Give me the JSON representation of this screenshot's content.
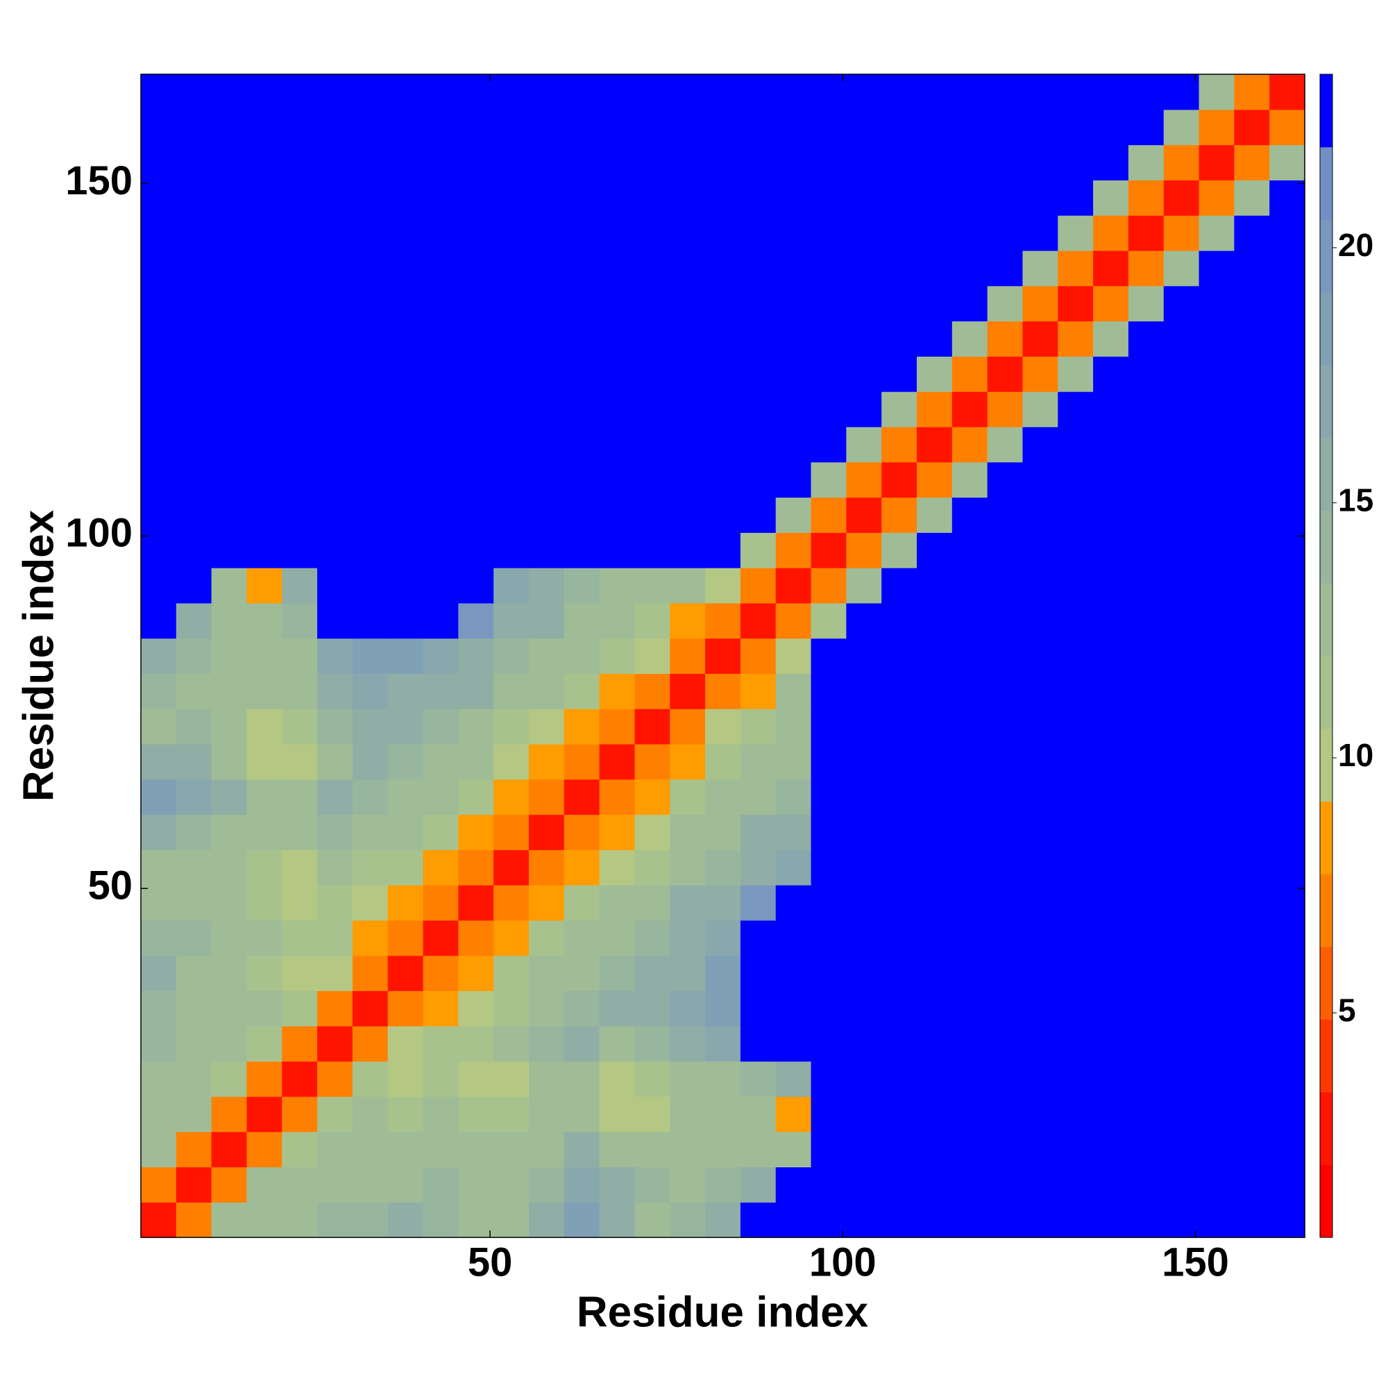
{
  "chart_data": {
    "type": "heatmap",
    "x_label": "Residue index",
    "y_label": "Residue index",
    "xlim": [
      0.5,
      165.5
    ],
    "ylim": [
      0.5,
      165.5
    ],
    "xticks": [
      50,
      100,
      150
    ],
    "yticks": [
      50,
      100,
      150
    ],
    "bins": [
      0.5,
      5.5,
      10.5,
      15.5,
      20.5,
      25.5,
      30.5,
      35.5,
      40.5,
      45.5,
      50.5,
      55.5,
      60.5,
      65.5,
      70.5,
      75.5,
      80.5,
      85.5,
      90.5,
      95.5,
      100.5,
      105.5,
      110.5,
      115.5,
      120.5,
      125.5,
      130.5,
      135.5,
      140.5,
      145.5,
      150.5,
      155.5,
      160.5,
      165.5
    ],
    "zlim": [
      0.6,
      23.4
    ],
    "zticks": [
      5,
      10,
      15,
      20
    ],
    "colorscale": [
      "#ff0000",
      "#ff1400",
      "#ff3800",
      "#ff5e00",
      "#ff8000",
      "#ff9c00",
      "#b4c884",
      "#a8c28e",
      "#a0bc96",
      "#98b69e",
      "#90aea6",
      "#88a8ae",
      "#80a0b6",
      "#7a98be",
      "#7290c4",
      "#0000ff"
    ],
    "values": [
      [
        3,
        7,
        12,
        13,
        13,
        14,
        14,
        15,
        14,
        13,
        13,
        15,
        18,
        16,
        13,
        14,
        15,
        23,
        23,
        23,
        23,
        23,
        23,
        23,
        23,
        23,
        23,
        23,
        23,
        23,
        23,
        23,
        23
      ],
      [
        7,
        3,
        7,
        12,
        12,
        13,
        13,
        13,
        14,
        13,
        12,
        14,
        17,
        15,
        14,
        13,
        14,
        16,
        23,
        23,
        23,
        23,
        23,
        23,
        23,
        23,
        23,
        23,
        23,
        23,
        23,
        23,
        23
      ],
      [
        12,
        7,
        3,
        7,
        11,
        12,
        12,
        12,
        13,
        12,
        12,
        13,
        15,
        13,
        12,
        12,
        13,
        13,
        12,
        23,
        23,
        23,
        23,
        23,
        23,
        23,
        23,
        23,
        23,
        23,
        23,
        23,
        23
      ],
      [
        13,
        12,
        7,
        3,
        7,
        11,
        12,
        11,
        12,
        11,
        11,
        12,
        13,
        10,
        10,
        12,
        12,
        12,
        9,
        23,
        23,
        23,
        23,
        23,
        23,
        23,
        23,
        23,
        23,
        23,
        23,
        23,
        23
      ],
      [
        13,
        12,
        11,
        7,
        3,
        7,
        11,
        10,
        11,
        10,
        10,
        12,
        13,
        10,
        11,
        12,
        12,
        14,
        15,
        23,
        23,
        23,
        23,
        23,
        23,
        23,
        23,
        23,
        23,
        23,
        23,
        23,
        23
      ],
      [
        14,
        13,
        12,
        11,
        7,
        3,
        7,
        10,
        11,
        11,
        12,
        14,
        15,
        13,
        14,
        16,
        17,
        23,
        23,
        23,
        23,
        23,
        23,
        23,
        23,
        23,
        23,
        23,
        23,
        23,
        23,
        23,
        23
      ],
      [
        14,
        13,
        12,
        12,
        11,
        7,
        3,
        7,
        9,
        10,
        11,
        13,
        14,
        15,
        16,
        17,
        18,
        23,
        23,
        23,
        23,
        23,
        23,
        23,
        23,
        23,
        23,
        23,
        23,
        23,
        23,
        23,
        23
      ],
      [
        15,
        13,
        12,
        11,
        10,
        10,
        7,
        3,
        7,
        9,
        11,
        12,
        13,
        14,
        16,
        16,
        18,
        23,
        23,
        23,
        23,
        23,
        23,
        23,
        23,
        23,
        23,
        23,
        23,
        23,
        23,
        23,
        23
      ],
      [
        14,
        14,
        13,
        12,
        11,
        11,
        9,
        7,
        3,
        7,
        9,
        11,
        12,
        13,
        14,
        16,
        17,
        22,
        23,
        23,
        23,
        23,
        23,
        23,
        23,
        23,
        23,
        23,
        23,
        23,
        23,
        23,
        23
      ],
      [
        13,
        13,
        12,
        11,
        10,
        11,
        10,
        9,
        7,
        3,
        7,
        9,
        11,
        12,
        13,
        15,
        16,
        20,
        23,
        23,
        23,
        23,
        23,
        23,
        23,
        23,
        23,
        23,
        23,
        23,
        23,
        23,
        23
      ],
      [
        13,
        12,
        12,
        11,
        10,
        12,
        11,
        11,
        9,
        7,
        3,
        7,
        9,
        10,
        11,
        12,
        14,
        16,
        17,
        23,
        23,
        23,
        23,
        23,
        23,
        23,
        23,
        23,
        23,
        23,
        23,
        23,
        23
      ],
      [
        15,
        14,
        13,
        12,
        12,
        14,
        13,
        12,
        11,
        9,
        7,
        3,
        7,
        9,
        10,
        12,
        13,
        15,
        16,
        23,
        23,
        23,
        23,
        23,
        23,
        23,
        23,
        23,
        23,
        23,
        23,
        23,
        23
      ],
      [
        18,
        17,
        15,
        13,
        13,
        15,
        14,
        13,
        12,
        11,
        9,
        7,
        3,
        7,
        9,
        11,
        12,
        13,
        14,
        23,
        23,
        23,
        23,
        23,
        23,
        23,
        23,
        23,
        23,
        23,
        23,
        23,
        23
      ],
      [
        16,
        15,
        13,
        10,
        10,
        13,
        15,
        14,
        13,
        12,
        10,
        9,
        7,
        3,
        7,
        9,
        11,
        12,
        13,
        23,
        23,
        23,
        23,
        23,
        23,
        23,
        23,
        23,
        23,
        23,
        23,
        23,
        23
      ],
      [
        13,
        14,
        12,
        10,
        11,
        14,
        16,
        16,
        14,
        13,
        11,
        10,
        9,
        7,
        3,
        7,
        10,
        11,
        13,
        23,
        23,
        23,
        23,
        23,
        23,
        23,
        23,
        23,
        23,
        23,
        23,
        23,
        23
      ],
      [
        14,
        13,
        12,
        12,
        12,
        16,
        17,
        16,
        16,
        15,
        12,
        12,
        11,
        9,
        7,
        3,
        7,
        9,
        12,
        23,
        23,
        23,
        23,
        23,
        23,
        23,
        23,
        23,
        23,
        23,
        23,
        23,
        23
      ],
      [
        15,
        14,
        13,
        12,
        12,
        17,
        18,
        18,
        17,
        16,
        14,
        13,
        12,
        11,
        10,
        7,
        3,
        7,
        10,
        23,
        23,
        23,
        23,
        23,
        23,
        23,
        23,
        23,
        23,
        23,
        23,
        23,
        23
      ],
      [
        23,
        16,
        13,
        12,
        14,
        23,
        23,
        23,
        22,
        20,
        16,
        15,
        13,
        12,
        11,
        9,
        7,
        3,
        7,
        11,
        23,
        23,
        23,
        23,
        23,
        23,
        23,
        23,
        23,
        23,
        23,
        23,
        23
      ],
      [
        23,
        23,
        12,
        9,
        15,
        23,
        23,
        23,
        23,
        23,
        17,
        16,
        14,
        13,
        13,
        12,
        10,
        7,
        3,
        7,
        13,
        23,
        23,
        23,
        23,
        23,
        23,
        23,
        23,
        23,
        23,
        23,
        23
      ],
      [
        23,
        23,
        23,
        23,
        23,
        23,
        23,
        23,
        23,
        23,
        23,
        23,
        23,
        23,
        23,
        23,
        23,
        11,
        7,
        3,
        7,
        13,
        23,
        23,
        23,
        23,
        23,
        23,
        23,
        23,
        23,
        23,
        23
      ],
      [
        23,
        23,
        23,
        23,
        23,
        23,
        23,
        23,
        23,
        23,
        23,
        23,
        23,
        23,
        23,
        23,
        23,
        23,
        13,
        7,
        3,
        7,
        13,
        23,
        23,
        23,
        23,
        23,
        23,
        23,
        23,
        23,
        23
      ],
      [
        23,
        23,
        23,
        23,
        23,
        23,
        23,
        23,
        23,
        23,
        23,
        23,
        23,
        23,
        23,
        23,
        23,
        23,
        23,
        13,
        7,
        3,
        7,
        13,
        23,
        23,
        23,
        23,
        23,
        23,
        23,
        23,
        23
      ],
      [
        23,
        23,
        23,
        23,
        23,
        23,
        23,
        23,
        23,
        23,
        23,
        23,
        23,
        23,
        23,
        23,
        23,
        23,
        23,
        23,
        13,
        7,
        3,
        7,
        13,
        23,
        23,
        23,
        23,
        23,
        23,
        23,
        23
      ],
      [
        23,
        23,
        23,
        23,
        23,
        23,
        23,
        23,
        23,
        23,
        23,
        23,
        23,
        23,
        23,
        23,
        23,
        23,
        23,
        23,
        23,
        13,
        7,
        3,
        7,
        13,
        23,
        23,
        23,
        23,
        23,
        23,
        23
      ],
      [
        23,
        23,
        23,
        23,
        23,
        23,
        23,
        23,
        23,
        23,
        23,
        23,
        23,
        23,
        23,
        23,
        23,
        23,
        23,
        23,
        23,
        23,
        13,
        7,
        3,
        7,
        13,
        23,
        23,
        23,
        23,
        23,
        23
      ],
      [
        23,
        23,
        23,
        23,
        23,
        23,
        23,
        23,
        23,
        23,
        23,
        23,
        23,
        23,
        23,
        23,
        23,
        23,
        23,
        23,
        23,
        23,
        23,
        13,
        7,
        3,
        7,
        13,
        23,
        23,
        23,
        23,
        23
      ],
      [
        23,
        23,
        23,
        23,
        23,
        23,
        23,
        23,
        23,
        23,
        23,
        23,
        23,
        23,
        23,
        23,
        23,
        23,
        23,
        23,
        23,
        23,
        23,
        23,
        13,
        7,
        3,
        7,
        13,
        23,
        23,
        23,
        23
      ],
      [
        23,
        23,
        23,
        23,
        23,
        23,
        23,
        23,
        23,
        23,
        23,
        23,
        23,
        23,
        23,
        23,
        23,
        23,
        23,
        23,
        23,
        23,
        23,
        23,
        23,
        13,
        7,
        3,
        7,
        13,
        23,
        23,
        23
      ],
      [
        23,
        23,
        23,
        23,
        23,
        23,
        23,
        23,
        23,
        23,
        23,
        23,
        23,
        23,
        23,
        23,
        23,
        23,
        23,
        23,
        23,
        23,
        23,
        23,
        23,
        23,
        13,
        7,
        3,
        7,
        13,
        23,
        23
      ],
      [
        23,
        23,
        23,
        23,
        23,
        23,
        23,
        23,
        23,
        23,
        23,
        23,
        23,
        23,
        23,
        23,
        23,
        23,
        23,
        23,
        23,
        23,
        23,
        23,
        23,
        23,
        23,
        13,
        7,
        3,
        7,
        13,
        23
      ],
      [
        23,
        23,
        23,
        23,
        23,
        23,
        23,
        23,
        23,
        23,
        23,
        23,
        23,
        23,
        23,
        23,
        23,
        23,
        23,
        23,
        23,
        23,
        23,
        23,
        23,
        23,
        23,
        23,
        13,
        7,
        3,
        7,
        13
      ],
      [
        23,
        23,
        23,
        23,
        23,
        23,
        23,
        23,
        23,
        23,
        23,
        23,
        23,
        23,
        23,
        23,
        23,
        23,
        23,
        23,
        23,
        23,
        23,
        23,
        23,
        23,
        23,
        23,
        23,
        13,
        7,
        3,
        7
      ],
      [
        23,
        23,
        23,
        23,
        23,
        23,
        23,
        23,
        23,
        23,
        23,
        23,
        23,
        23,
        23,
        23,
        23,
        23,
        23,
        23,
        23,
        23,
        23,
        23,
        23,
        23,
        23,
        23,
        23,
        23,
        13,
        7,
        3
      ]
    ]
  }
}
